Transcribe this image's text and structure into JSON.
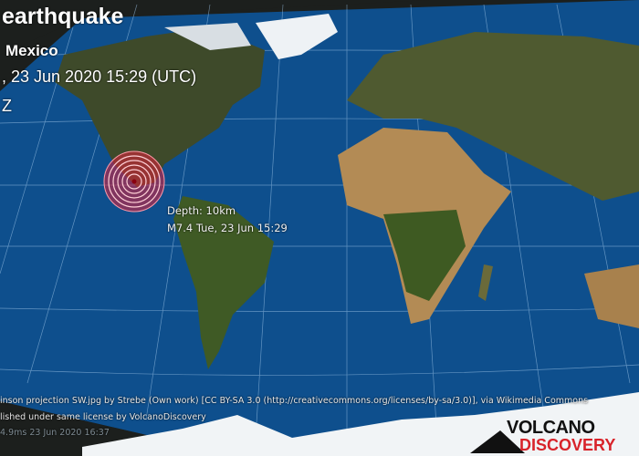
{
  "header": {
    "title": "earthquake",
    "region": "Mexico",
    "datetime": ", 23 Jun 2020 15:29 (UTC)",
    "timezone": "Z"
  },
  "marker": {
    "depth": "Depth: 10km",
    "magnitude_time": "M7.4 Tue, 23 Jun 15:29",
    "color": "#e0203a"
  },
  "credits": {
    "line1": "inson projection SW.jpg by Strebe (Own work) [CC BY-SA 3.0 (http://creativecommons.org/licenses/by-sa/3.0)], via Wikimedia Commons",
    "line2": "lished under same license by VolcanoDiscovery",
    "line3": "4.9ms 23 Jun 2020 16:37"
  },
  "logo": {
    "line1": "VOLCANO",
    "line2": "DISCOVERY"
  },
  "colors": {
    "ocean": "#0d4f8c",
    "land": "#4a5a2c",
    "desert": "#b08a55",
    "ice": "#eef2f5",
    "background": "#1c1f1d"
  }
}
